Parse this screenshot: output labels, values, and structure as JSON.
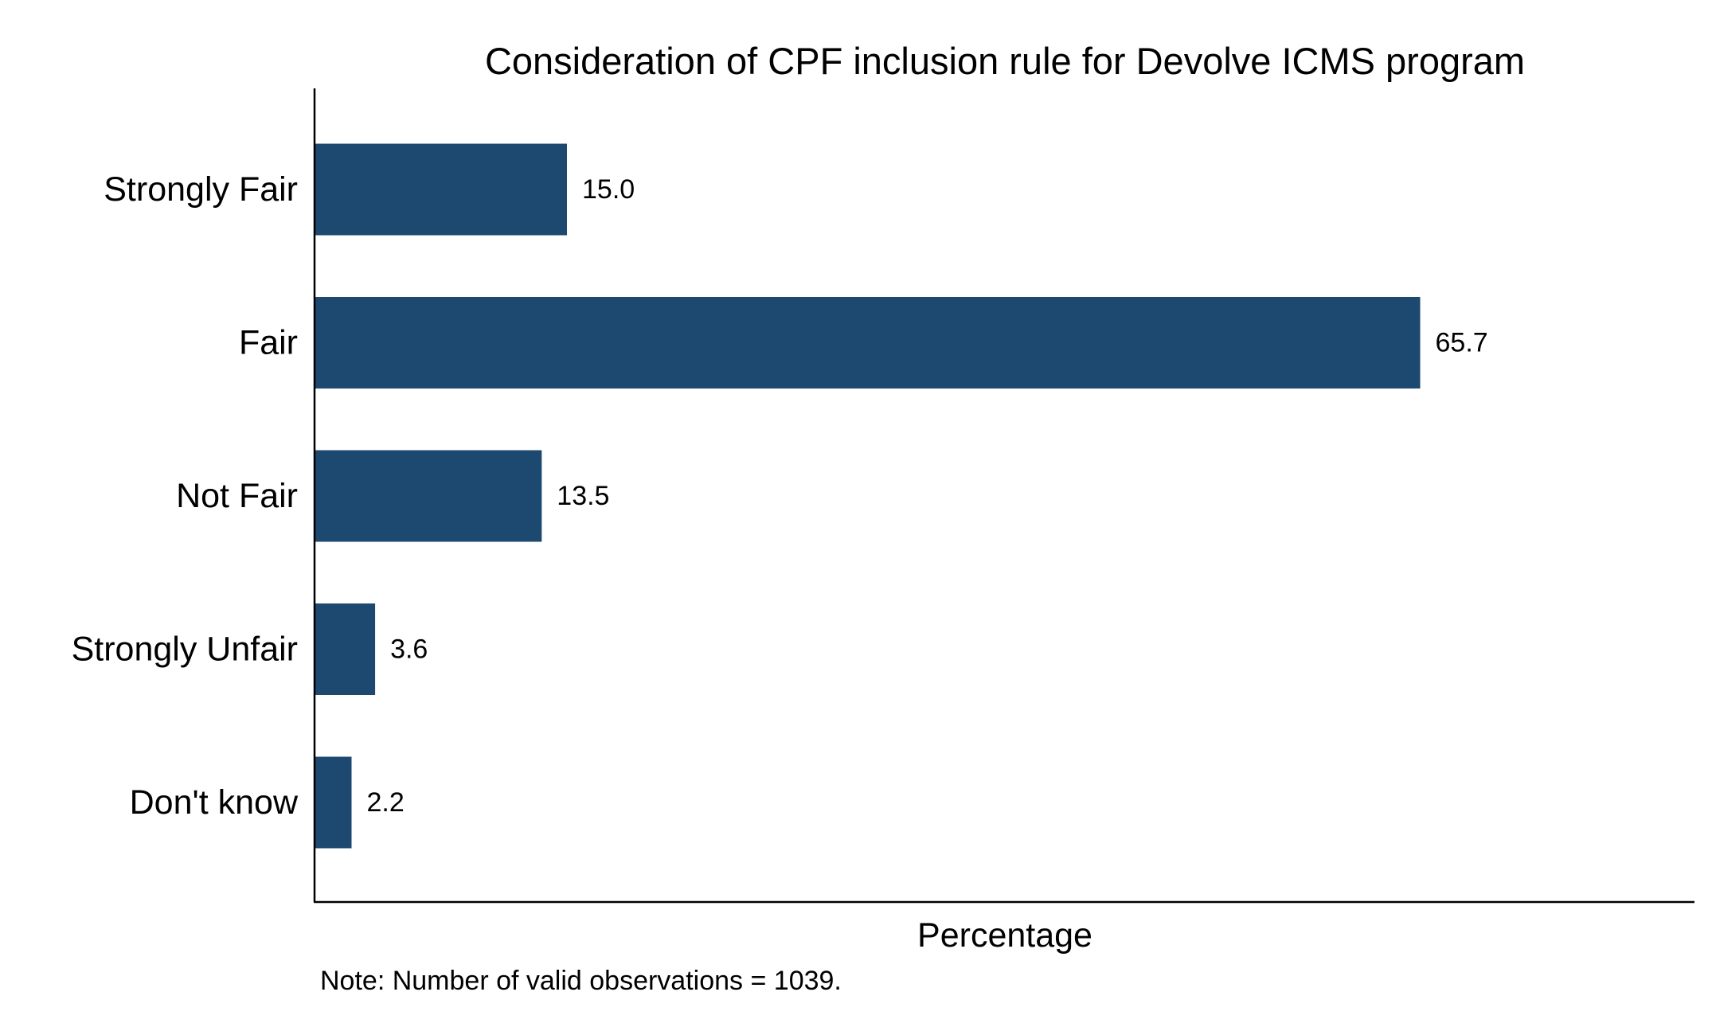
{
  "chart_data": {
    "type": "bar",
    "orientation": "horizontal",
    "title": "Consideration of CPF inclusion rule for Devolve ICMS program",
    "xlabel": "Percentage",
    "ylabel": "",
    "categories": [
      "Strongly Fair",
      "Fair",
      "Not Fair",
      "Strongly Unfair",
      "Don't know"
    ],
    "values": [
      15.0,
      65.7,
      13.5,
      3.6,
      2.2
    ],
    "value_labels": [
      "15.0",
      "65.7",
      "13.5",
      "3.6",
      "2.2"
    ],
    "xlim": [
      0,
      82
    ],
    "grid": false,
    "legend": "none",
    "note": "Note: Number of valid observations = 1039.",
    "bar_color": "#1d486f"
  }
}
